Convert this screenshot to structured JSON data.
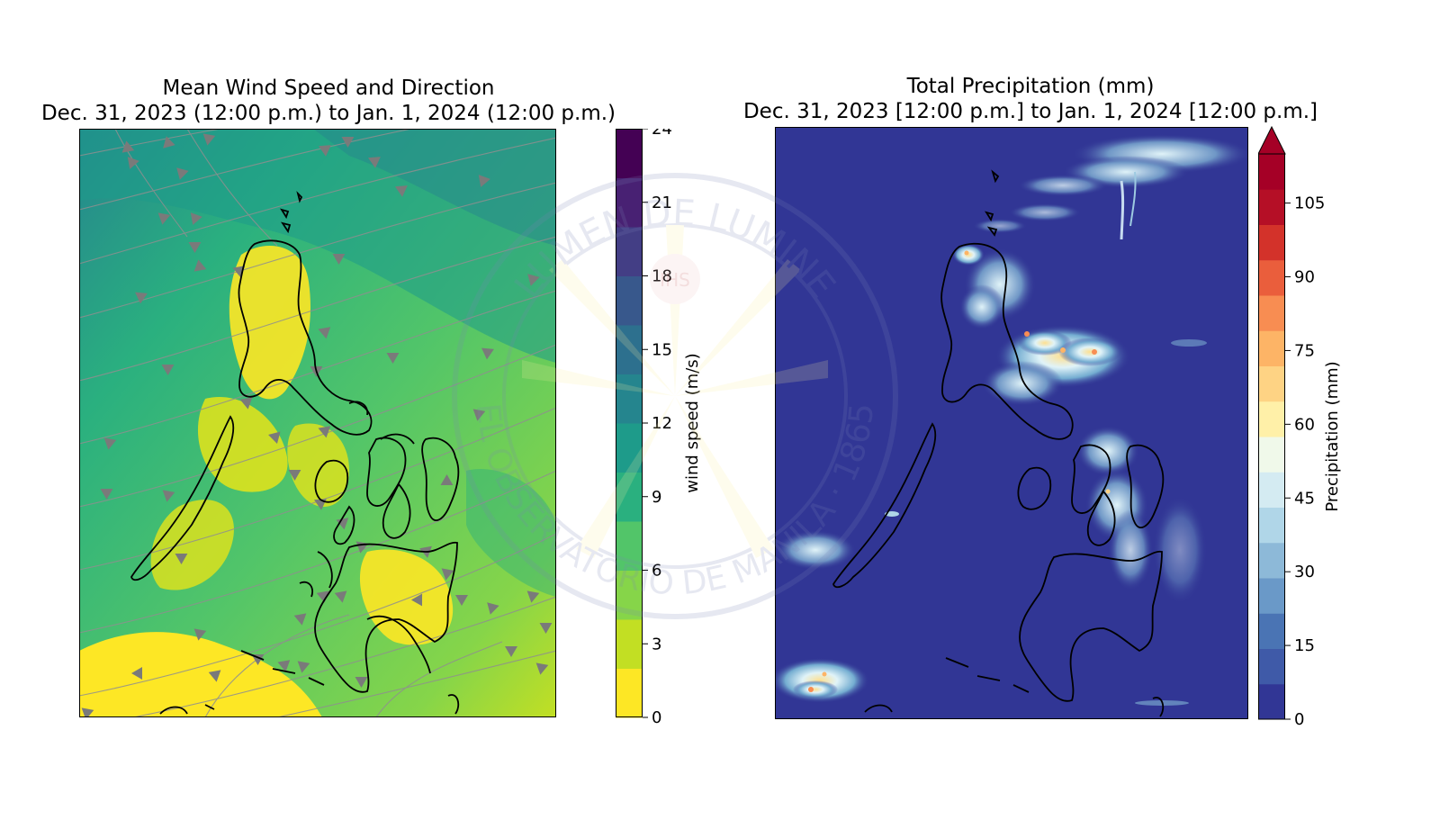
{
  "left_panel": {
    "title_line1": "Mean Wind Speed and Direction",
    "title_line2": "Dec. 31, 2023 (12:00 p.m.) to Jan. 1, 2024 (12:00 p.m.)",
    "colorbar": {
      "label": "wind speed (m/s)",
      "ticks": [
        "0",
        "3",
        "6",
        "9",
        "12",
        "15",
        "18",
        "21",
        "24"
      ],
      "range": [
        0,
        24
      ],
      "colormap": "viridis_r",
      "colors": [
        "#fde725",
        "#c2df23",
        "#86d549",
        "#52c569",
        "#2ab07f",
        "#1e9b8a",
        "#25858e",
        "#2d708e",
        "#38588c",
        "#433e85",
        "#482173",
        "#440154"
      ]
    }
  },
  "right_panel": {
    "title_line1": "Total Precipitation (mm)",
    "title_line2": "Dec. 31, 2023 [12:00 p.m.] to Jan. 1, 2024 [12:00 p.m.]",
    "colorbar": {
      "label": "Precipitation (mm)",
      "ticks": [
        "0",
        "15",
        "30",
        "45",
        "60",
        "75",
        "90",
        "105"
      ],
      "range": [
        0,
        115
      ],
      "extend": "max",
      "colormap": "RdYlBu_r",
      "colors": [
        "#313695",
        "#3f5aa8",
        "#4a74b4",
        "#6a99c8",
        "#8db9d8",
        "#b0d6e8",
        "#d4ebf2",
        "#f0f9ea",
        "#fff0a8",
        "#fed384",
        "#fdb466",
        "#f88d52",
        "#ea5e3c",
        "#d3322a",
        "#b50f26",
        "#a50026"
      ]
    },
    "background_color": "#313695"
  },
  "watermark": {
    "text_top": "LUMEN DE LUMINE",
    "text_bottom": "EL OBSERVATORIO DE MANILA · 1865",
    "center_text": "IHS"
  }
}
